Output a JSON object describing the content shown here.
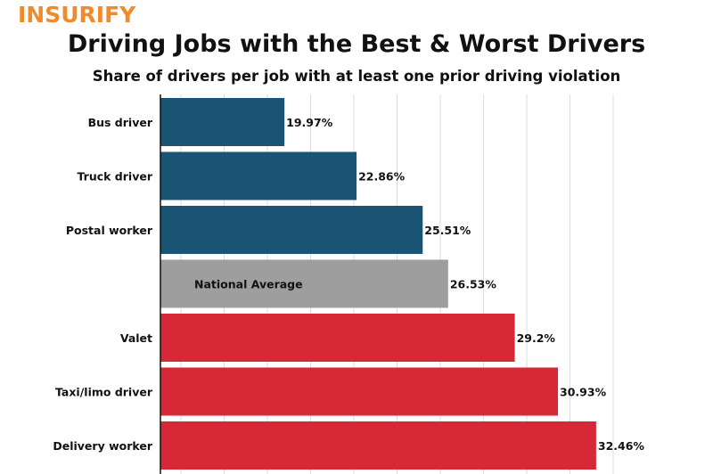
{
  "logo": "INSURIFY",
  "chart_data": {
    "type": "bar",
    "orientation": "horizontal",
    "title": "Driving Jobs with the Best & Worst Drivers",
    "subtitle": "Share of drivers per job with at least one prior driving violation",
    "categories": [
      "Bus driver",
      "Truck driver",
      "Postal worker",
      "National Average",
      "Valet",
      "Taxi/limo driver",
      "Delivery worker"
    ],
    "values": [
      19.97,
      22.86,
      25.51,
      26.53,
      29.2,
      30.93,
      32.46
    ],
    "labels": [
      "19.97%",
      "22.86%",
      "25.51%",
      "26.53%",
      "29.2%",
      "30.93%",
      "32.46%"
    ],
    "colors": [
      "#1a5474",
      "#1a5474",
      "#1a5474",
      "#9e9e9e",
      "#d62836",
      "#d62836",
      "#d62836"
    ],
    "xlim": [
      15,
      35
    ],
    "grid": true,
    "legend": "none"
  }
}
